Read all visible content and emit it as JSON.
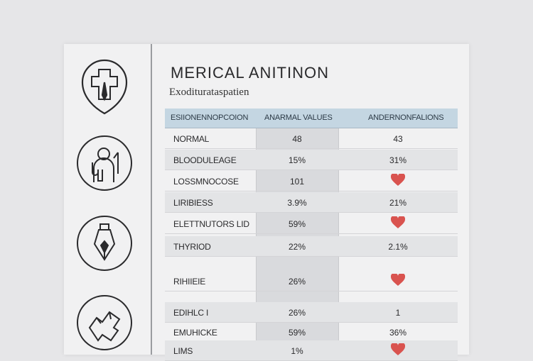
{
  "header": {
    "title": "MERICAL ANITINON",
    "subtitle": "Exoditurataspatien"
  },
  "table": {
    "columns": [
      "ESIIONENNOPCOION",
      "ANARMAL VALUES",
      "ANDERNONFALIONS"
    ],
    "rows": [
      {
        "label": "NORMAL",
        "value": "48",
        "comparison": "43",
        "heart": false
      },
      {
        "label": "BLOODULEAGE",
        "value": "15%",
        "comparison": "31%",
        "heart": false
      },
      {
        "label": "LOSSMNOCOSE",
        "value": "101",
        "comparison": "",
        "heart": true
      },
      {
        "label": "LIRIBIESS",
        "value": "3.9%",
        "comparison": "21%",
        "heart": false
      },
      {
        "label": "ELETTNUTORS  LID",
        "value": "59%",
        "comparison": "",
        "heart": true
      },
      {
        "label": "THYRIOD",
        "value": "22%",
        "comparison": "2.1%",
        "heart": false
      },
      {
        "label": "RIHIIEIE",
        "value": "26%",
        "comparison": "",
        "heart": true
      },
      {
        "label": "EDIHLC I",
        "value": "26%",
        "comparison": "1",
        "heart": false
      },
      {
        "label": "EMUHICKE",
        "value": "59%",
        "comparison": "36%",
        "heart": false
      },
      {
        "label": "LIMS",
        "value": "1%",
        "comparison": "",
        "heart": true
      }
    ]
  },
  "icons": [
    "shield-cross-icon",
    "doctor-icon",
    "pen-nib-icon",
    "puzzle-hand-icon",
    "heart-icon"
  ],
  "colors": {
    "header_band": "#c4d6e2",
    "heart": "#d9534f",
    "sheet": "#f1f1f2"
  }
}
